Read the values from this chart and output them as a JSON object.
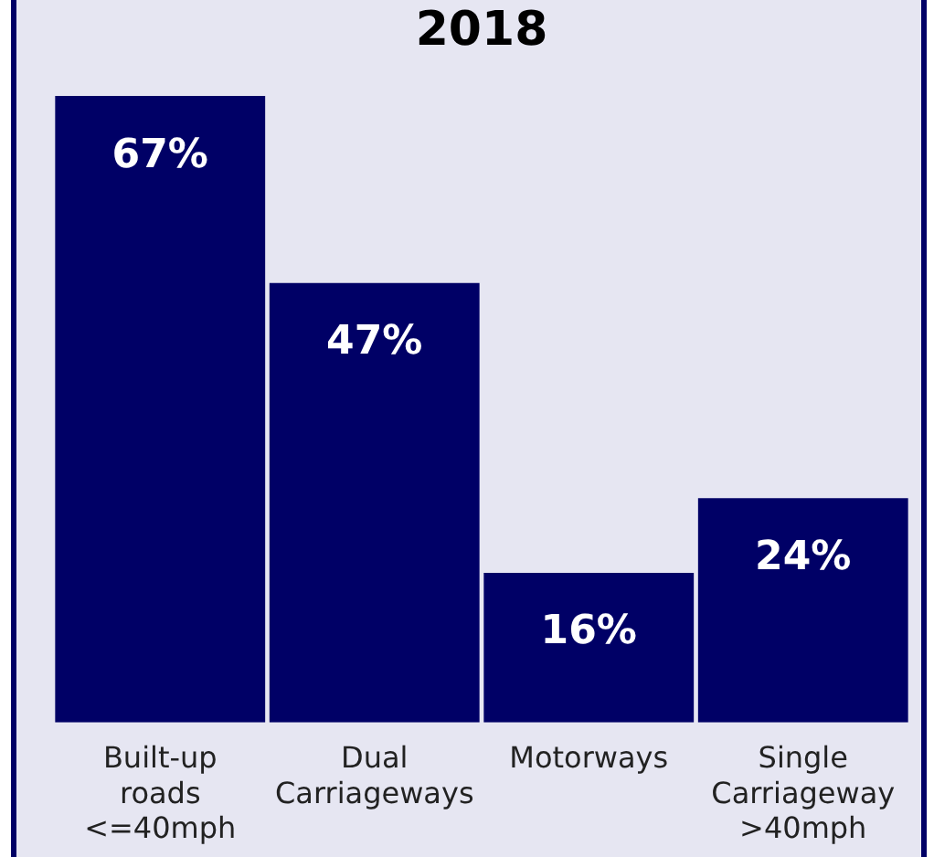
{
  "chart_data": {
    "type": "bar",
    "title": "2018",
    "categories": [
      "Built-up roads <=40mph",
      "Dual Carriageways",
      "Motorways",
      "Single Carriageway >40mph"
    ],
    "values": [
      67,
      47,
      16,
      24
    ],
    "value_labels": [
      "67%",
      "47%",
      "16%",
      "24%"
    ],
    "color": "#000066",
    "grid": false,
    "legend": false
  }
}
